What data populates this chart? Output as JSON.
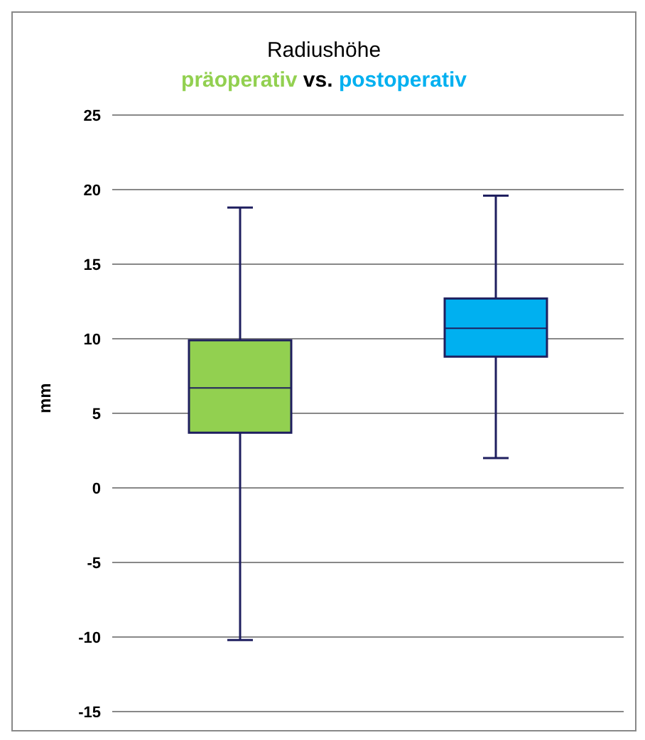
{
  "chart_data": {
    "type": "box",
    "title": "Radiushöhe",
    "subtitle": "vs.",
    "ylabel": "mm",
    "categories": [
      null,
      null
    ],
    "series": [
      {
        "name": "präoperativ",
        "color": "#92d050",
        "boxes": [
          {
            "low": -10.2,
            "q1": 3.7,
            "median": 6.7,
            "q3": 9.9,
            "high": 18.8
          },
          null
        ]
      },
      {
        "name": "postoperativ",
        "color": "#00b0f0",
        "boxes": [
          null,
          {
            "low": 2.0,
            "q1": 8.8,
            "median": 10.7,
            "q3": 12.7,
            "high": 19.6
          }
        ]
      }
    ],
    "ylim": [
      -15,
      25
    ],
    "yticks": [
      -15,
      -10,
      -5,
      0,
      5,
      10,
      15,
      20,
      25
    ],
    "grid": "y"
  }
}
